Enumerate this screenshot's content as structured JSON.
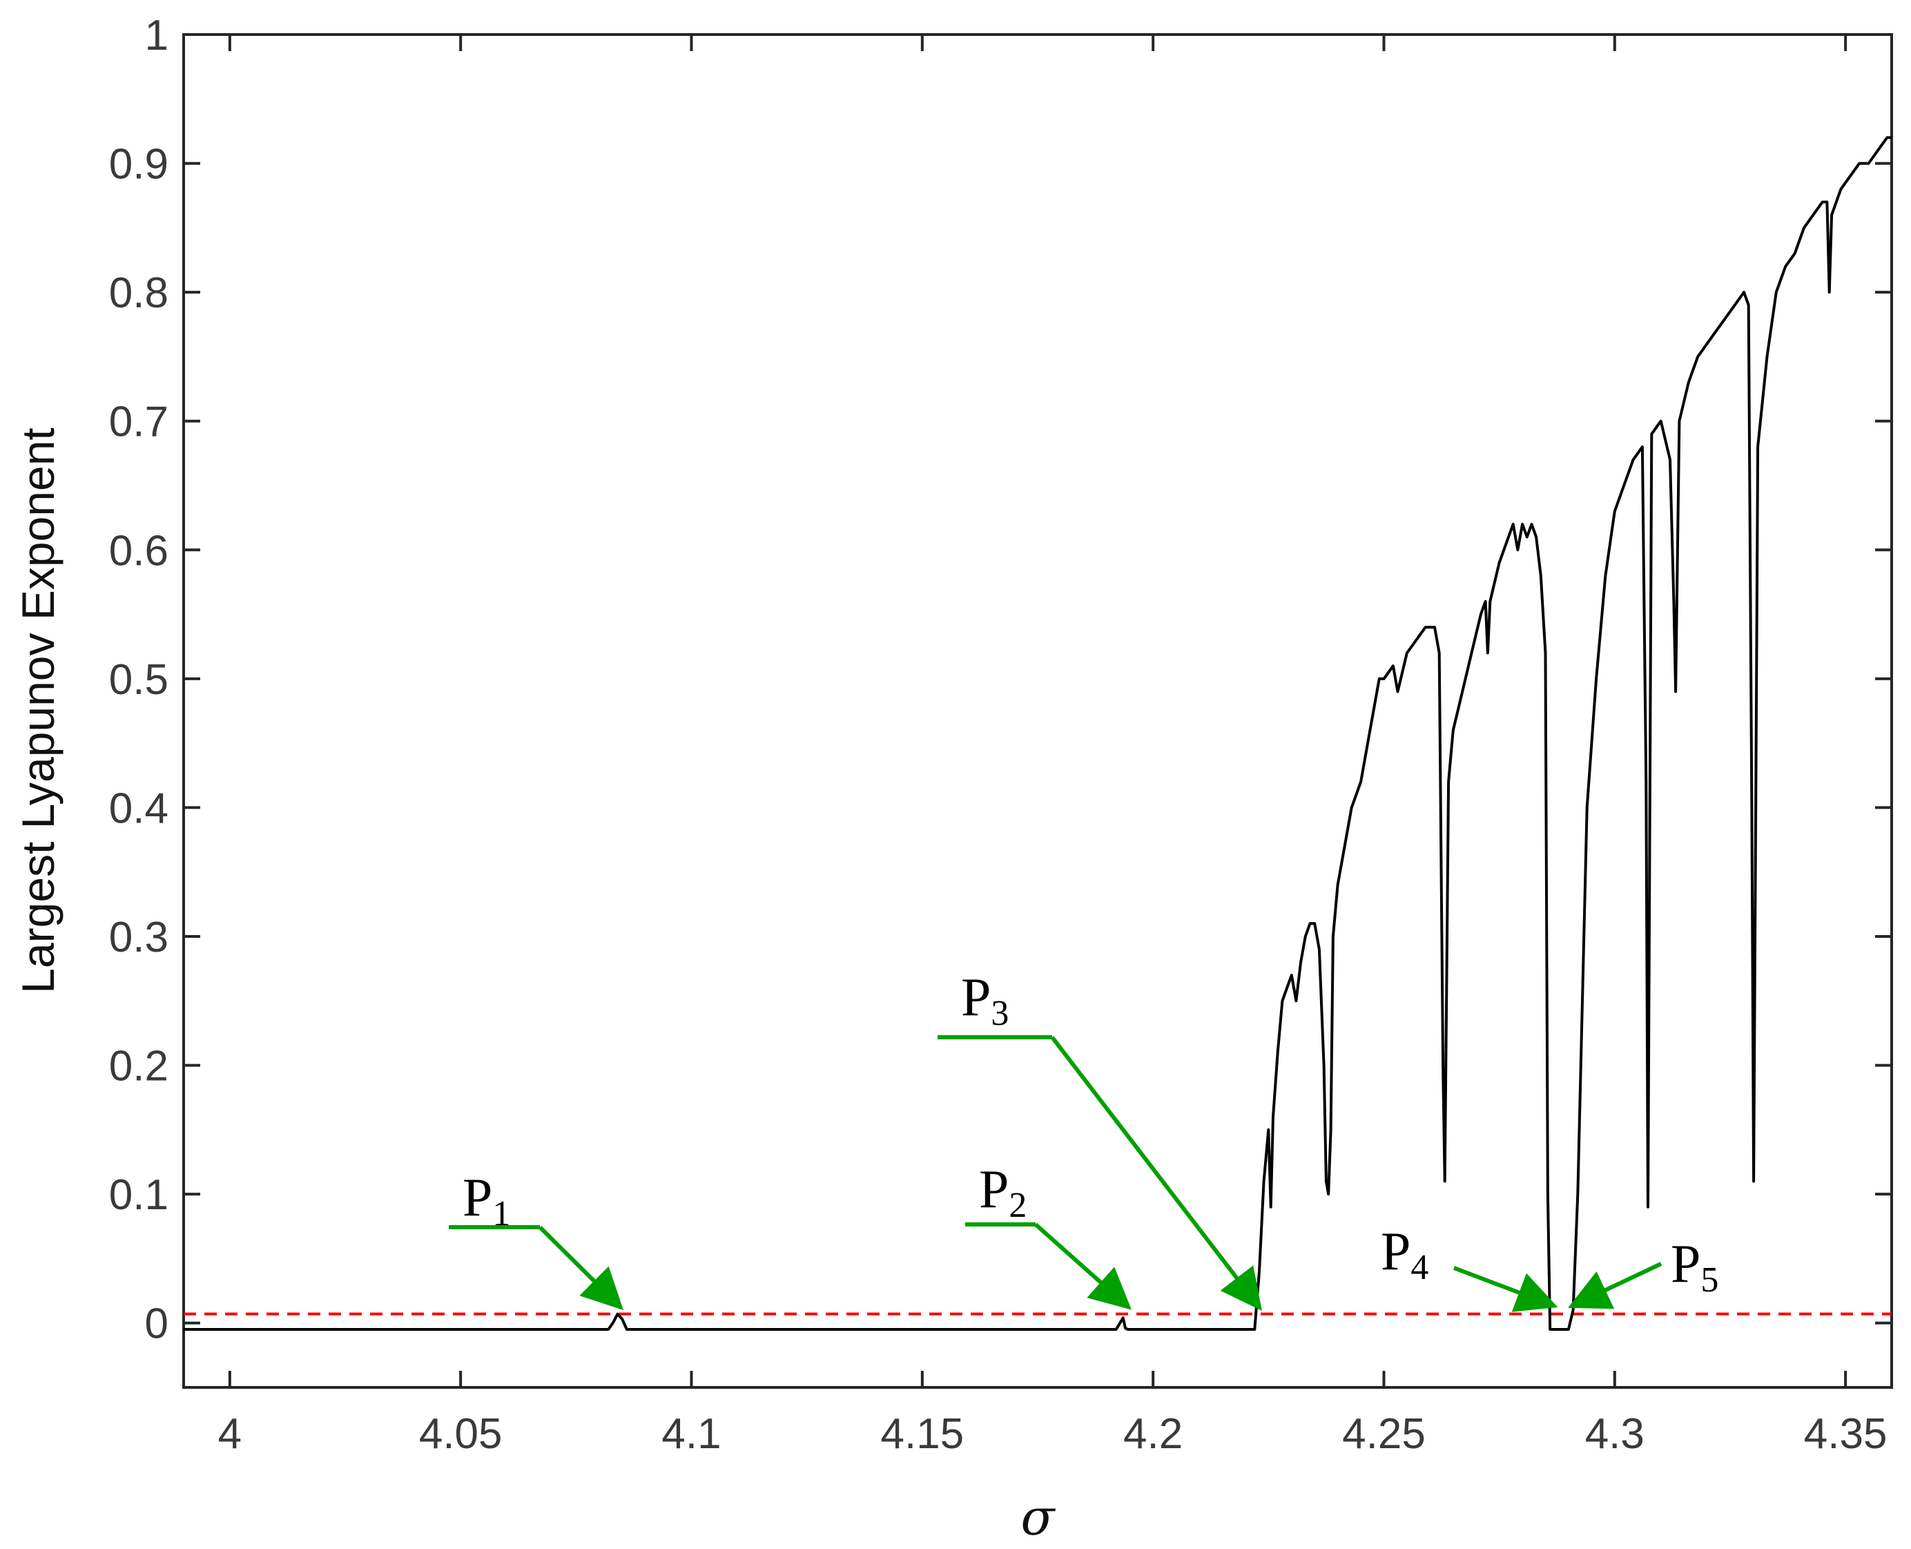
{
  "chart_data": {
    "type": "line",
    "title": "",
    "xlabel": "σ",
    "ylabel": "Largest Lyapunov Exponent",
    "xlim": [
      3.99,
      4.36
    ],
    "ylim": [
      -0.05,
      1.0
    ],
    "xticks": [
      4,
      4.05,
      4.1,
      4.15,
      4.2,
      4.25,
      4.3,
      4.35
    ],
    "yticks": [
      0,
      0.1,
      0.2,
      0.3,
      0.4,
      0.5,
      0.6,
      0.7,
      0.8,
      0.9,
      1
    ],
    "grid": false,
    "reference_line": {
      "y": 0.007,
      "color": "#ff0000",
      "style": "dashed"
    },
    "line_color": "#000000",
    "annotation_color": "#00a000",
    "series": [
      {
        "x": [
          3.99,
          4.082,
          4.083,
          4.084,
          4.085,
          4.086,
          4.192,
          4.1935,
          4.194,
          4.1945,
          4.222,
          4.223,
          4.224,
          4.225,
          4.2255,
          4.226,
          4.227,
          4.228,
          4.229,
          4.23,
          4.231,
          4.232,
          4.233,
          4.234,
          4.235,
          4.236,
          4.237,
          4.2375,
          4.238,
          4.2385,
          4.239,
          4.24,
          4.241,
          4.243,
          4.245,
          4.247,
          4.249,
          4.25,
          4.252,
          4.253,
          4.255,
          4.257,
          4.259,
          4.261,
          4.262,
          4.2628,
          4.2632,
          4.264,
          4.265,
          4.267,
          4.269,
          4.271,
          4.272,
          4.2725,
          4.273,
          4.275,
          4.277,
          4.278,
          4.279,
          4.28,
          4.281,
          4.282,
          4.283,
          4.284,
          4.285,
          4.2855,
          4.286,
          4.29,
          4.291,
          4.292,
          4.294,
          4.296,
          4.298,
          4.3,
          4.302,
          4.304,
          4.306,
          4.3068,
          4.3072,
          4.308,
          4.31,
          4.312,
          4.3128,
          4.3132,
          4.314,
          4.316,
          4.318,
          4.32,
          4.322,
          4.324,
          4.326,
          4.328,
          4.329,
          4.3297,
          4.3301,
          4.331,
          4.333,
          4.335,
          4.337,
          4.339,
          4.341,
          4.343,
          4.345,
          4.346,
          4.3465,
          4.347,
          4.349,
          4.351,
          4.353,
          4.355,
          4.357,
          4.359,
          4.36
        ],
        "y": [
          -0.005,
          -0.005,
          0.0,
          0.007,
          0.003,
          -0.005,
          -0.005,
          0.004,
          -0.004,
          -0.005,
          -0.005,
          0.04,
          0.11,
          0.15,
          0.09,
          0.16,
          0.21,
          0.25,
          0.26,
          0.27,
          0.25,
          0.28,
          0.3,
          0.31,
          0.31,
          0.29,
          0.2,
          0.11,
          0.1,
          0.15,
          0.3,
          0.34,
          0.36,
          0.4,
          0.42,
          0.46,
          0.5,
          0.5,
          0.51,
          0.49,
          0.52,
          0.53,
          0.54,
          0.54,
          0.52,
          0.2,
          0.11,
          0.42,
          0.46,
          0.49,
          0.52,
          0.55,
          0.56,
          0.52,
          0.56,
          0.59,
          0.61,
          0.62,
          0.6,
          0.62,
          0.61,
          0.62,
          0.61,
          0.58,
          0.52,
          0.1,
          -0.005,
          -0.005,
          0.01,
          0.1,
          0.4,
          0.5,
          0.58,
          0.63,
          0.65,
          0.67,
          0.68,
          0.42,
          0.09,
          0.69,
          0.7,
          0.67,
          0.56,
          0.49,
          0.7,
          0.73,
          0.75,
          0.76,
          0.77,
          0.78,
          0.79,
          0.8,
          0.79,
          0.4,
          0.11,
          0.68,
          0.75,
          0.8,
          0.82,
          0.83,
          0.85,
          0.86,
          0.87,
          0.87,
          0.8,
          0.86,
          0.88,
          0.89,
          0.9,
          0.9,
          0.91,
          0.92,
          0.92
        ]
      }
    ],
    "annotations": [
      {
        "label": "P",
        "sub": "1",
        "x": 4.084,
        "y": 0.007
      },
      {
        "label": "P",
        "sub": "2",
        "x": 4.194,
        "y": 0.007
      },
      {
        "label": "P",
        "sub": "3",
        "x": 4.2225,
        "y": 0.007
      },
      {
        "label": "P",
        "sub": "4",
        "x": 4.286,
        "y": 0.007
      },
      {
        "label": "P",
        "sub": "5",
        "x": 4.2915,
        "y": 0.007
      }
    ]
  }
}
